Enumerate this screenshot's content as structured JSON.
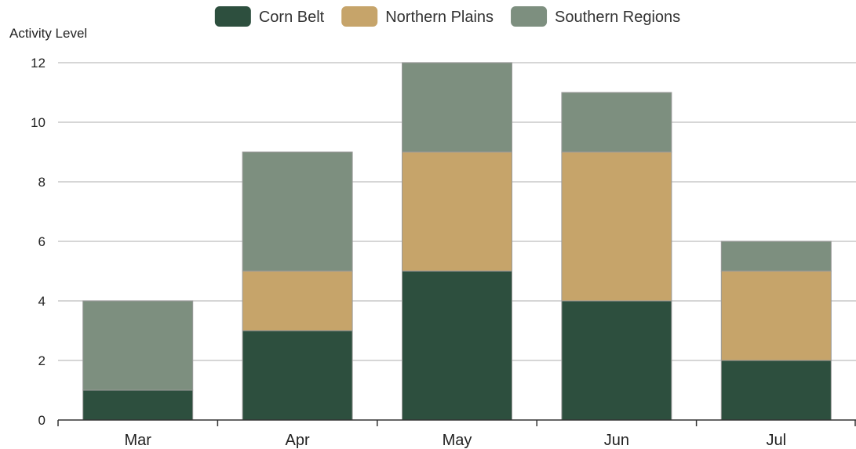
{
  "chart_data": {
    "type": "bar",
    "stacked": true,
    "title": "",
    "xlabel": "",
    "ylabel": "Activity Level",
    "categories": [
      "Mar",
      "Apr",
      "May",
      "Jun",
      "Jul"
    ],
    "series": [
      {
        "name": "Corn Belt",
        "color": "#2d4f3e",
        "values": [
          1,
          3,
          5,
          4,
          2
        ]
      },
      {
        "name": "Northern Plains",
        "color": "#c6a46a",
        "values": [
          0,
          2,
          4,
          5,
          3
        ]
      },
      {
        "name": "Southern Regions",
        "color": "#7d8f7f",
        "values": [
          3,
          4,
          3,
          2,
          1
        ]
      }
    ],
    "ylim": [
      0,
      12
    ],
    "yticks": [
      0,
      2,
      4,
      6,
      8,
      10,
      12
    ],
    "grid": true,
    "legend": "top-center"
  }
}
